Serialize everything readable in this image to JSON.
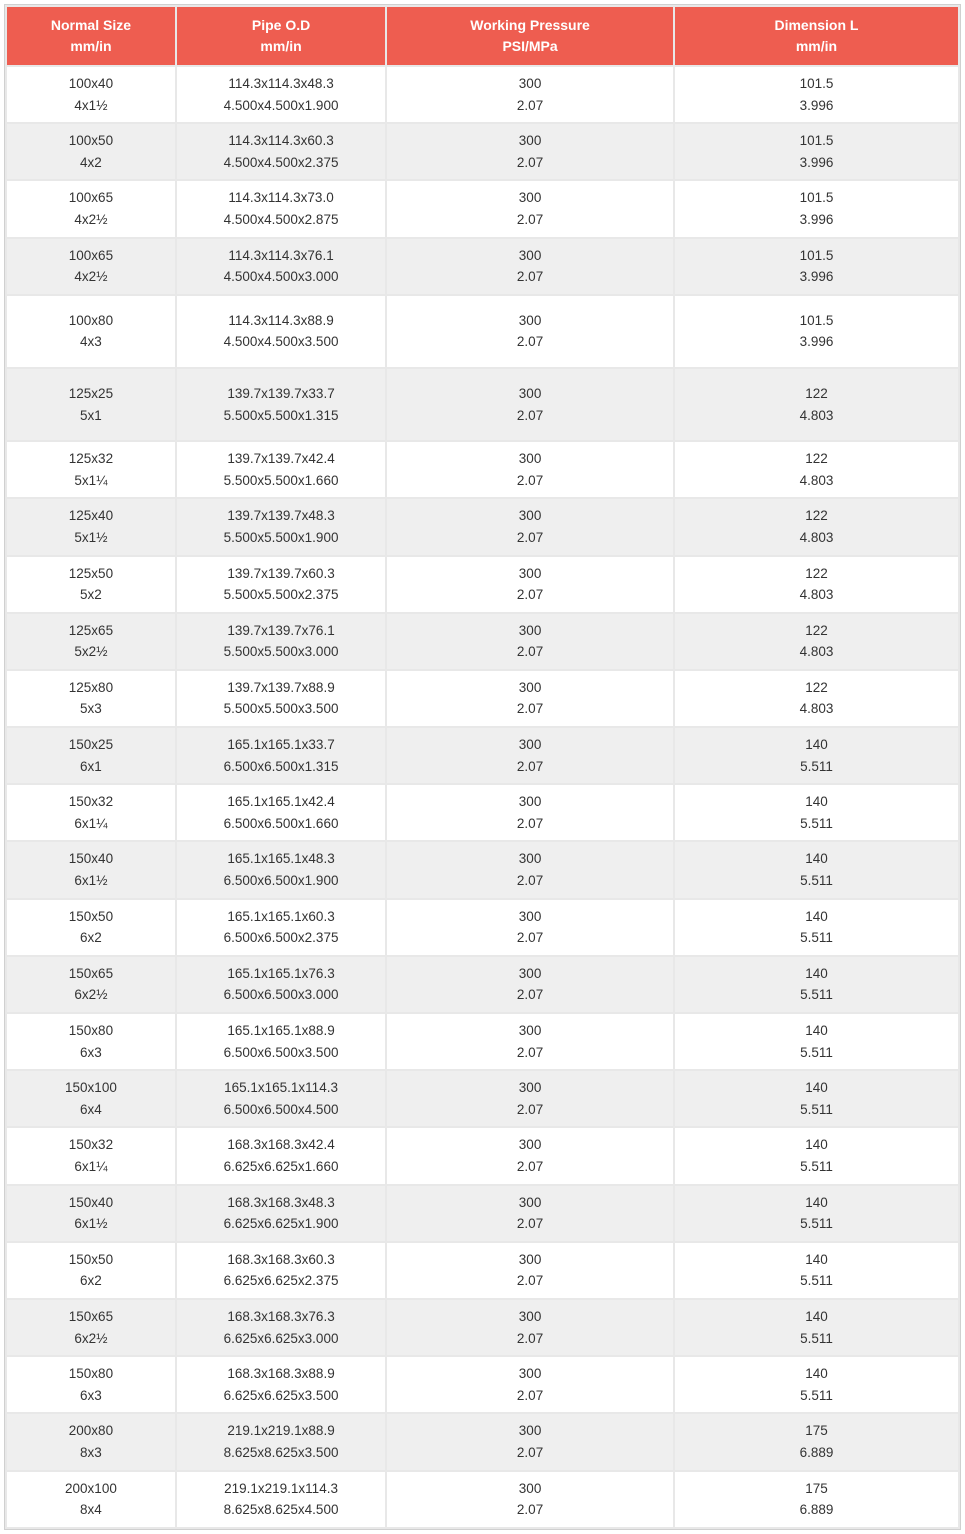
{
  "table": {
    "columns": [
      {
        "line1": "Normal Size",
        "line2": "mm/in"
      },
      {
        "line1": "Pipe O.D",
        "line2": "mm/in"
      },
      {
        "line1": "Working Pressure",
        "line2": "PSI/MPa"
      },
      {
        "line1": "Dimension L",
        "line2": "mm/in"
      }
    ],
    "rows": [
      {
        "c0a": "100x40",
        "c0b": "4x1½",
        "c1a": "114.3x114.3x48.3",
        "c1b": "4.500x4.500x1.900",
        "c2a": "300",
        "c2b": "2.07",
        "c3a": "101.5",
        "c3b": "3.996",
        "gap": false
      },
      {
        "c0a": "100x50",
        "c0b": "4x2",
        "c1a": "114.3x114.3x60.3",
        "c1b": "4.500x4.500x2.375",
        "c2a": "300",
        "c2b": "2.07",
        "c3a": "101.5",
        "c3b": "3.996",
        "gap": false
      },
      {
        "c0a": "100x65",
        "c0b": "4x2½",
        "c1a": "114.3x114.3x73.0",
        "c1b": "4.500x4.500x2.875",
        "c2a": "300",
        "c2b": "2.07",
        "c3a": "101.5",
        "c3b": "3.996",
        "gap": false
      },
      {
        "c0a": "100x65",
        "c0b": "4x2½",
        "c1a": "114.3x114.3x76.1",
        "c1b": "4.500x4.500x3.000",
        "c2a": "300",
        "c2b": "2.07",
        "c3a": "101.5",
        "c3b": "3.996",
        "gap": false
      },
      {
        "c0a": "100x80",
        "c0b": "4x3",
        "c1a": "114.3x114.3x88.9",
        "c1b": "4.500x4.500x3.500",
        "c2a": "300",
        "c2b": "2.07",
        "c3a": "101.5",
        "c3b": "3.996",
        "gap": true
      },
      {
        "c0a": "125x25",
        "c0b": "5x1",
        "c1a": "139.7x139.7x33.7",
        "c1b": "5.500x5.500x1.315",
        "c2a": "300",
        "c2b": "2.07",
        "c3a": "122",
        "c3b": "4.803",
        "gap": true
      },
      {
        "c0a": "125x32",
        "c0b": "5x1¼",
        "c1a": "139.7x139.7x42.4",
        "c1b": "5.500x5.500x1.660",
        "c2a": "300",
        "c2b": "2.07",
        "c3a": "122",
        "c3b": "4.803",
        "gap": false
      },
      {
        "c0a": "125x40",
        "c0b": "5x1½",
        "c1a": "139.7x139.7x48.3",
        "c1b": "5.500x5.500x1.900",
        "c2a": "300",
        "c2b": "2.07",
        "c3a": "122",
        "c3b": "4.803",
        "gap": false
      },
      {
        "c0a": "125x50",
        "c0b": "5x2",
        "c1a": "139.7x139.7x60.3",
        "c1b": "5.500x5.500x2.375",
        "c2a": "300",
        "c2b": "2.07",
        "c3a": "122",
        "c3b": "4.803",
        "gap": false
      },
      {
        "c0a": "125x65",
        "c0b": "5x2½",
        "c1a": "139.7x139.7x76.1",
        "c1b": "5.500x5.500x3.000",
        "c2a": "300",
        "c2b": "2.07",
        "c3a": "122",
        "c3b": "4.803",
        "gap": false
      },
      {
        "c0a": "125x80",
        "c0b": "5x3",
        "c1a": "139.7x139.7x88.9",
        "c1b": "5.500x5.500x3.500",
        "c2a": "300",
        "c2b": "2.07",
        "c3a": "122",
        "c3b": "4.803",
        "gap": false
      },
      {
        "c0a": "150x25",
        "c0b": "6x1",
        "c1a": "165.1x165.1x33.7",
        "c1b": "6.500x6.500x1.315",
        "c2a": "300",
        "c2b": "2.07",
        "c3a": "140",
        "c3b": "5.511",
        "gap": false
      },
      {
        "c0a": "150x32",
        "c0b": "6x1¼",
        "c1a": "165.1x165.1x42.4",
        "c1b": "6.500x6.500x1.660",
        "c2a": "300",
        "c2b": "2.07",
        "c3a": "140",
        "c3b": "5.511",
        "gap": false
      },
      {
        "c0a": "150x40",
        "c0b": "6x1½",
        "c1a": "165.1x165.1x48.3",
        "c1b": "6.500x6.500x1.900",
        "c2a": "300",
        "c2b": "2.07",
        "c3a": "140",
        "c3b": "5.511",
        "gap": false
      },
      {
        "c0a": "150x50",
        "c0b": "6x2",
        "c1a": "165.1x165.1x60.3",
        "c1b": "6.500x6.500x2.375",
        "c2a": "300",
        "c2b": "2.07",
        "c3a": "140",
        "c3b": "5.511",
        "gap": false
      },
      {
        "c0a": "150x65",
        "c0b": "6x2½",
        "c1a": "165.1x165.1x76.3",
        "c1b": "6.500x6.500x3.000",
        "c2a": "300",
        "c2b": "2.07",
        "c3a": "140",
        "c3b": "5.511",
        "gap": false
      },
      {
        "c0a": "150x80",
        "c0b": "6x3",
        "c1a": "165.1x165.1x88.9",
        "c1b": "6.500x6.500x3.500",
        "c2a": "300",
        "c2b": "2.07",
        "c3a": "140",
        "c3b": "5.511",
        "gap": false
      },
      {
        "c0a": "150x100",
        "c0b": "6x4",
        "c1a": "165.1x165.1x114.3",
        "c1b": "6.500x6.500x4.500",
        "c2a": "300",
        "c2b": "2.07",
        "c3a": "140",
        "c3b": "5.511",
        "gap": false
      },
      {
        "c0a": "150x32",
        "c0b": "6x1¼",
        "c1a": "168.3x168.3x42.4",
        "c1b": "6.625x6.625x1.660",
        "c2a": "300",
        "c2b": "2.07",
        "c3a": "140",
        "c3b": "5.511",
        "gap": false
      },
      {
        "c0a": "150x40",
        "c0b": "6x1½",
        "c1a": "168.3x168.3x48.3",
        "c1b": "6.625x6.625x1.900",
        "c2a": "300",
        "c2b": "2.07",
        "c3a": "140",
        "c3b": "5.511",
        "gap": false
      },
      {
        "c0a": "150x50",
        "c0b": "6x2",
        "c1a": "168.3x168.3x60.3",
        "c1b": "6.625x6.625x2.375",
        "c2a": "300",
        "c2b": "2.07",
        "c3a": "140",
        "c3b": "5.511",
        "gap": false
      },
      {
        "c0a": "150x65",
        "c0b": "6x2½",
        "c1a": "168.3x168.3x76.3",
        "c1b": "6.625x6.625x3.000",
        "c2a": "300",
        "c2b": "2.07",
        "c3a": "140",
        "c3b": "5.511",
        "gap": false
      },
      {
        "c0a": "150x80",
        "c0b": "6x3",
        "c1a": "168.3x168.3x88.9",
        "c1b": "6.625x6.625x3.500",
        "c2a": "300",
        "c2b": "2.07",
        "c3a": "140",
        "c3b": "5.511",
        "gap": false
      },
      {
        "c0a": "200x80",
        "c0b": "8x3",
        "c1a": "219.1x219.1x88.9",
        "c1b": "8.625x8.625x3.500",
        "c2a": "300",
        "c2b": "2.07",
        "c3a": "175",
        "c3b": "6.889",
        "gap": false
      },
      {
        "c0a": "200x100",
        "c0b": "8x4",
        "c1a": "219.1x219.1x114.3",
        "c1b": "8.625x8.625x4.500",
        "c2a": "300",
        "c2b": "2.07",
        "c3a": "175",
        "c3b": "6.889",
        "gap": false
      }
    ],
    "header_bg": "#ee5d50",
    "header_fg": "#ffffff",
    "row_odd_bg": "#ffffff",
    "row_even_bg": "#efefef",
    "border_color": "#d0d0d0",
    "text_color": "#333333",
    "font_size_header": 14,
    "font_size_body": 13.5
  }
}
